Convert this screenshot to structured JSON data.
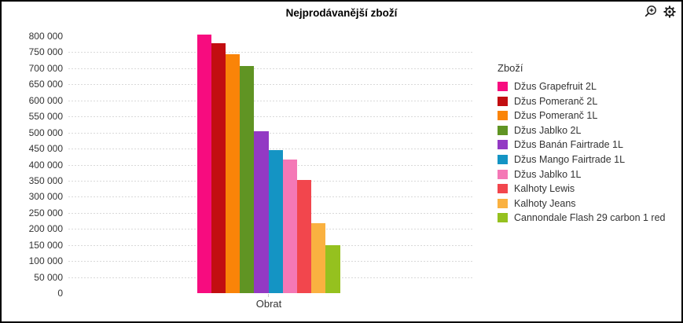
{
  "header": {
    "title": "Nejprodávanější zboží",
    "icons": [
      {
        "name": "zoom-in-icon"
      },
      {
        "name": "settings-gear-icon"
      }
    ],
    "icon_color": "#1a1a1a"
  },
  "chart_data": {
    "type": "bar",
    "title": "Nejprodávanější zboží",
    "categories": [
      "Obrat"
    ],
    "xlabel": "",
    "ylabel": "",
    "ylim": [
      0,
      800000
    ],
    "ytick_step": 50000,
    "ytick_labels": [
      "0",
      "50 000",
      "100 000",
      "150 000",
      "200 000",
      "250 000",
      "300 000",
      "350 000",
      "400 000",
      "450 000",
      "500 000",
      "550 000",
      "600 000",
      "650 000",
      "700 000",
      "750 000",
      "800 000"
    ],
    "grid": "horizontal-dotted",
    "gridline_color": "#d9d9d9",
    "legend_title": "Zboží",
    "legend_position": "right",
    "series": [
      {
        "name": "Džus Grapefruit 2L",
        "color": "#F70C7F",
        "values": [
          805000
        ]
      },
      {
        "name": "Džus Pomeranč 2L",
        "color": "#C20E11",
        "values": [
          778000
        ]
      },
      {
        "name": "Džus Pomeranč 1L",
        "color": "#FA8408",
        "values": [
          743000
        ]
      },
      {
        "name": "Džus Jablko 2L",
        "color": "#609423",
        "values": [
          707000
        ]
      },
      {
        "name": "Džus Banán Fairtrade 1L",
        "color": "#9339C4",
        "values": [
          505000
        ]
      },
      {
        "name": "Džus Mango Fairtrade 1L",
        "color": "#1494C4",
        "values": [
          446000
        ]
      },
      {
        "name": "Džus Jablko 1L",
        "color": "#F478B6",
        "values": [
          416000
        ]
      },
      {
        "name": "Kalhoty Lewis",
        "color": "#F2464D",
        "values": [
          352000
        ]
      },
      {
        "name": "Kalhoty Jeans",
        "color": "#FAB140",
        "values": [
          218000
        ]
      },
      {
        "name": "Cannondale Flash 29 carbon 1 red",
        "color": "#95C11F",
        "values": [
          150000
        ]
      }
    ]
  }
}
